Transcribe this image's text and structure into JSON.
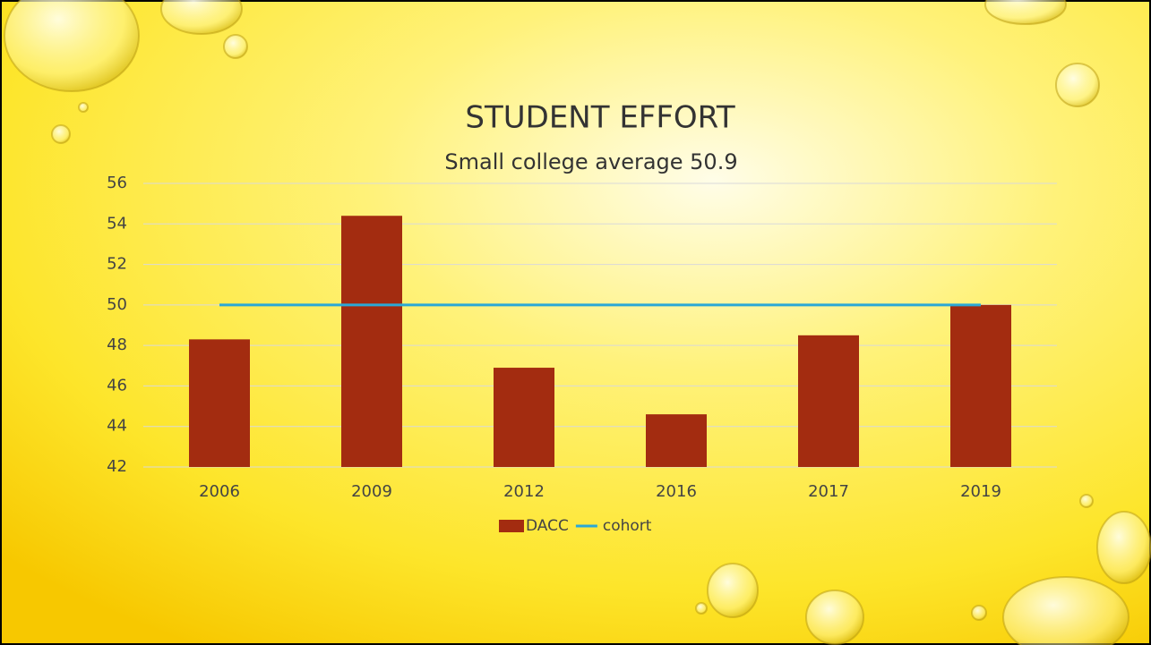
{
  "chart_data": {
    "type": "combo",
    "title": "STUDENT EFFORT",
    "subtitle": "Small college average 50.9",
    "categories": [
      "2006",
      "2009",
      "2012",
      "2016",
      "2017",
      "2019"
    ],
    "series": [
      {
        "name": "DACC",
        "type": "bar",
        "color": "#a32c10",
        "values": [
          48.3,
          54.4,
          46.9,
          44.6,
          48.5,
          50.0
        ]
      },
      {
        "name": "cohort",
        "type": "line",
        "color": "#2aa8d6",
        "values": [
          50,
          50,
          50,
          50,
          50,
          50
        ]
      }
    ],
    "ylim": [
      42,
      56
    ],
    "yticks": [
      42,
      44,
      46,
      48,
      50,
      52,
      54,
      56
    ],
    "grid": true,
    "legend": "bottom"
  }
}
